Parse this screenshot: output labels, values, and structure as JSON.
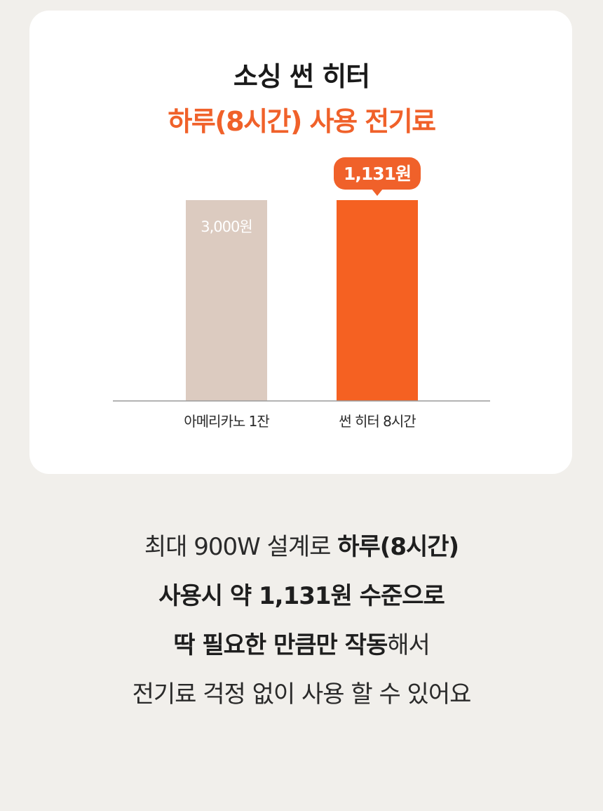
{
  "header": {
    "title": "소싱 썬 히터",
    "subtitle": "하루(8시간) 사용 전기료"
  },
  "chart_data": {
    "type": "bar",
    "categories": [
      "아메리카노 1잔",
      "썬 히터 8시간"
    ],
    "values": [
      3000,
      1131
    ],
    "value_labels": [
      "3,000원",
      "1,131원"
    ],
    "title": "하루(8시간) 사용 전기료",
    "xlabel": "",
    "ylabel": "",
    "colors": [
      "#dccbc0",
      "#f56122"
    ],
    "callout_color": "#f0612a",
    "axis_color": "#9a9a9a",
    "grid": false
  },
  "description": {
    "line1": {
      "normal": "최대 900W 설계로 ",
      "bold": "하루(8시간)"
    },
    "line2": {
      "bold": "사용시 약 1,131원 수준으로"
    },
    "line3": {
      "bold": "딱 필요한 만큼만 작동",
      "normal": "해서"
    },
    "line4": {
      "normal": "전기료 걱정 없이 사용 할 수 있어요"
    }
  }
}
